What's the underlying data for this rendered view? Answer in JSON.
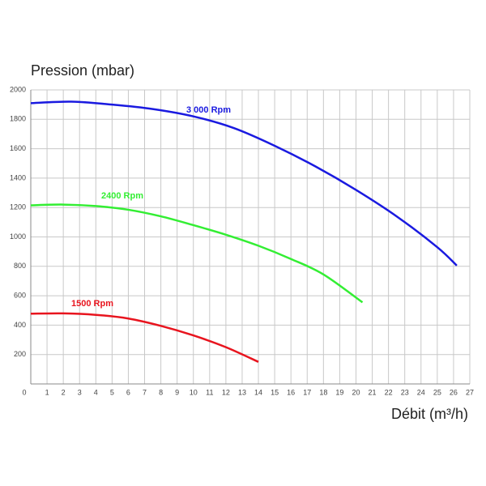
{
  "chart_data": {
    "type": "line",
    "y_label": "Pression (mbar)",
    "x_label": "Débit (m³/h)",
    "xlim": [
      0,
      27
    ],
    "xticks": [
      0,
      1,
      2,
      3,
      4,
      5,
      6,
      7,
      8,
      9,
      10,
      11,
      12,
      13,
      14,
      15,
      16,
      17,
      18,
      19,
      20,
      21,
      22,
      23,
      24,
      25,
      26,
      27
    ],
    "ylim": [
      0,
      2000
    ],
    "yticks": [
      200,
      400,
      600,
      800,
      1000,
      1200,
      1400,
      1600,
      1800,
      2000
    ],
    "grid": true,
    "series": [
      {
        "name": "3 000 Rpm",
        "color": "#1a1ae0",
        "x": [
          0,
          2.5,
          5,
          7.5,
          10,
          12.5,
          15,
          17.5,
          20,
          22.5,
          25,
          26.2
        ],
        "values": [
          1910,
          1920,
          1900,
          1870,
          1820,
          1740,
          1620,
          1480,
          1320,
          1140,
          930,
          805
        ]
      },
      {
        "name": "2400 Rpm",
        "color": "#33ee33",
        "x": [
          0,
          2,
          4,
          6,
          8,
          10,
          12,
          14,
          16,
          18,
          20.4
        ],
        "values": [
          1215,
          1220,
          1210,
          1185,
          1140,
          1080,
          1015,
          940,
          850,
          745,
          555
        ]
      },
      {
        "name": "1500 Rpm",
        "color": "#e8141e",
        "x": [
          0,
          2,
          4,
          6,
          8,
          10,
          12,
          14
        ],
        "values": [
          478,
          480,
          470,
          445,
          395,
          330,
          250,
          150
        ]
      }
    ]
  }
}
